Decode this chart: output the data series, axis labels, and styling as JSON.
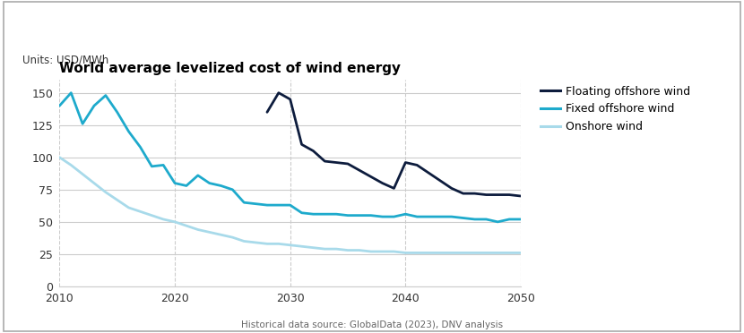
{
  "title": "World average levelized cost of wind energy",
  "units_label": "Units: USD/MWh",
  "source_label": "Historical data source: GlobalData (2023), DNV analysis",
  "xlim": [
    2010,
    2050
  ],
  "ylim": [
    0,
    160
  ],
  "yticks": [
    0,
    25,
    50,
    75,
    100,
    125,
    150
  ],
  "xticks": [
    2010,
    2020,
    2030,
    2040,
    2050
  ],
  "background_color": "#ffffff",
  "floating_offshore": {
    "label": "Floating offshore wind",
    "color": "#0d1c3d",
    "linewidth": 2.0,
    "x": [
      2028,
      2029,
      2030,
      2031,
      2032,
      2033,
      2034,
      2035,
      2036,
      2037,
      2038,
      2039,
      2040,
      2041,
      2042,
      2043,
      2044,
      2045,
      2046,
      2047,
      2048,
      2049,
      2050
    ],
    "y": [
      135,
      150,
      145,
      110,
      105,
      97,
      96,
      95,
      90,
      85,
      80,
      76,
      96,
      94,
      88,
      82,
      76,
      72,
      72,
      71,
      71,
      71,
      70
    ]
  },
  "fixed_offshore": {
    "label": "Fixed offshore wind",
    "color": "#1eaacc",
    "linewidth": 2.0,
    "x": [
      2010,
      2011,
      2012,
      2013,
      2014,
      2015,
      2016,
      2017,
      2018,
      2019,
      2020,
      2021,
      2022,
      2023,
      2024,
      2025,
      2026,
      2027,
      2028,
      2029,
      2030,
      2031,
      2032,
      2033,
      2034,
      2035,
      2036,
      2037,
      2038,
      2039,
      2040,
      2041,
      2042,
      2043,
      2044,
      2045,
      2046,
      2047,
      2048,
      2049,
      2050
    ],
    "y": [
      140,
      150,
      126,
      140,
      148,
      135,
      120,
      108,
      93,
      94,
      80,
      78,
      86,
      80,
      78,
      75,
      65,
      64,
      63,
      63,
      63,
      57,
      56,
      56,
      56,
      55,
      55,
      55,
      54,
      54,
      56,
      54,
      54,
      54,
      54,
      53,
      52,
      52,
      50,
      52,
      52
    ]
  },
  "onshore": {
    "label": "Onshore wind",
    "color": "#a8daea",
    "linewidth": 2.0,
    "x": [
      2010,
      2011,
      2012,
      2013,
      2014,
      2015,
      2016,
      2017,
      2018,
      2019,
      2020,
      2021,
      2022,
      2023,
      2024,
      2025,
      2026,
      2027,
      2028,
      2029,
      2030,
      2031,
      2032,
      2033,
      2034,
      2035,
      2036,
      2037,
      2038,
      2039,
      2040,
      2041,
      2042,
      2043,
      2044,
      2045,
      2046,
      2047,
      2048,
      2049,
      2050
    ],
    "y": [
      100,
      94,
      87,
      80,
      73,
      67,
      61,
      58,
      55,
      52,
      50,
      47,
      44,
      42,
      40,
      38,
      35,
      34,
      33,
      33,
      32,
      31,
      30,
      29,
      29,
      28,
      28,
      27,
      27,
      27,
      26,
      26,
      26,
      26,
      26,
      26,
      26,
      26,
      26,
      26,
      26
    ]
  }
}
